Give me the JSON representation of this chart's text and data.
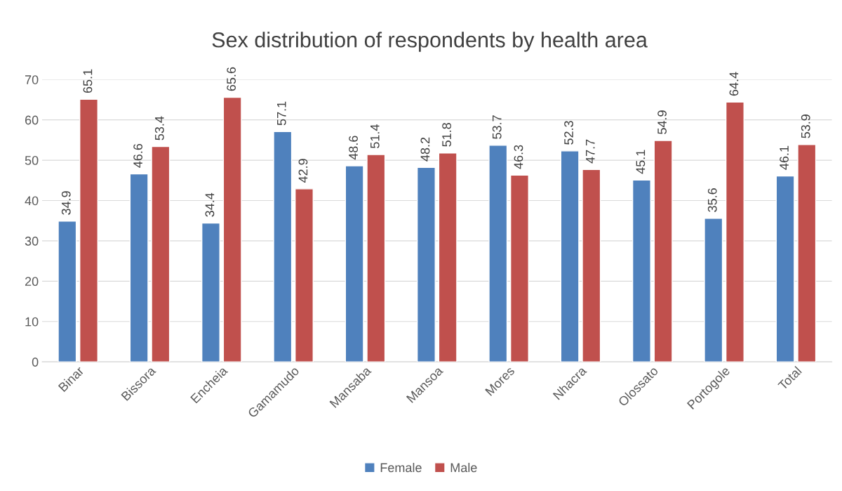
{
  "chart_data": {
    "type": "bar",
    "title": "Sex distribution of respondents by health area",
    "categories": [
      "Binar",
      "Bissora",
      "Encheia",
      "Gamamudo",
      "Mansaba",
      "Mansoa",
      "Mores",
      "Nhacra",
      "Olossato",
      "Portogole",
      "Total"
    ],
    "series": [
      {
        "name": "Female",
        "color": "#4f81bd",
        "values": [
          34.9,
          46.6,
          34.4,
          57.1,
          48.6,
          48.2,
          53.7,
          52.3,
          45.1,
          35.6,
          46.1
        ]
      },
      {
        "name": "Male",
        "color": "#c0504d",
        "values": [
          65.1,
          53.4,
          65.6,
          42.9,
          51.4,
          51.8,
          46.3,
          47.7,
          54.9,
          64.4,
          53.9
        ]
      }
    ],
    "ylim": [
      0,
      70
    ],
    "yticks": [
      0,
      10,
      20,
      30,
      40,
      50,
      60,
      70
    ],
    "grid": "y",
    "legend": "bottom",
    "data_labels": true
  }
}
